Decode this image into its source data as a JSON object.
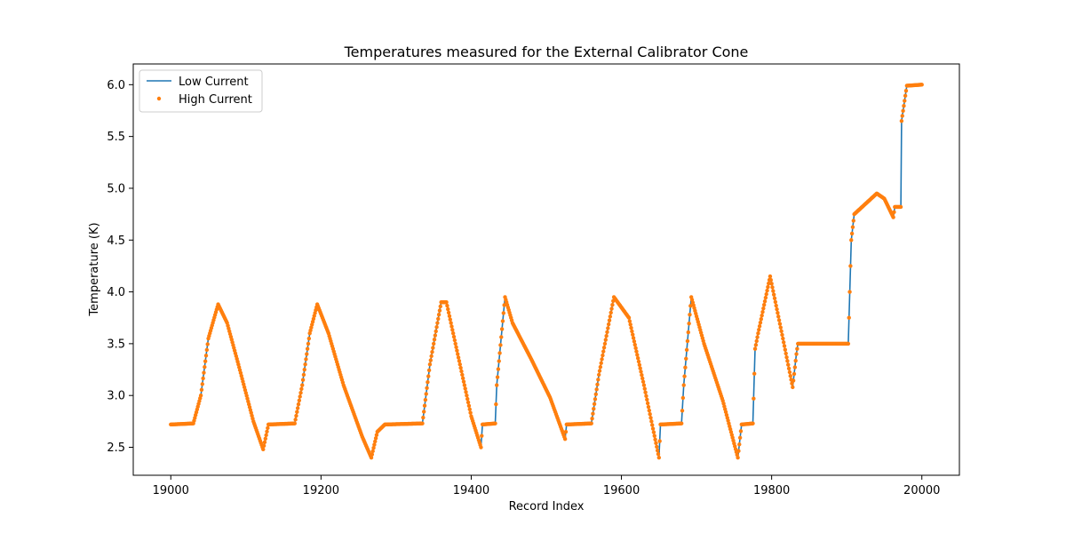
{
  "chart_data": {
    "type": "line",
    "title": "Temperatures measured for the External Calibrator Cone",
    "xlabel": "Record Index",
    "ylabel": "Temperature (K)",
    "xlim": [
      18950,
      20050
    ],
    "ylim": [
      2.23,
      6.2
    ],
    "xticks": [
      19000,
      19200,
      19400,
      19600,
      19800,
      20000
    ],
    "yticks": [
      2.5,
      3.0,
      3.5,
      4.0,
      4.5,
      5.0,
      5.5,
      6.0
    ],
    "xtick_labels": [
      "19000",
      "19200",
      "19400",
      "19600",
      "19800",
      "20000"
    ],
    "ytick_labels": [
      "2.5",
      "3.0",
      "3.5",
      "4.0",
      "4.5",
      "5.0",
      "5.5",
      "6.0"
    ],
    "legend_position": "upper-left",
    "grid": false,
    "series": [
      {
        "name": "Low Current",
        "style": "line",
        "color": "#1f77b4",
        "x": [
          19000,
          19030,
          19040,
          19050,
          19063,
          19075,
          19090,
          19110,
          19123,
          19130,
          19165,
          19175,
          19185,
          19195,
          19210,
          19230,
          19255,
          19267,
          19275,
          19285,
          19335,
          19345,
          19360,
          19367,
          19385,
          19400,
          19413,
          19415,
          19432,
          19434,
          19445,
          19455,
          19480,
          19505,
          19525,
          19527,
          19560,
          19570,
          19590,
          19610,
          19630,
          19650,
          19652,
          19680,
          19683,
          19693,
          19710,
          19735,
          19755,
          19760,
          19775,
          19778,
          19782,
          19798,
          19815,
          19828,
          19833,
          19835,
          19845,
          19902,
          19906,
          19910,
          19925,
          19940,
          19950,
          19962,
          19964,
          19972,
          19973,
          19980,
          20000
        ],
        "y": [
          2.72,
          2.73,
          3.0,
          3.55,
          3.88,
          3.7,
          3.3,
          2.75,
          2.48,
          2.72,
          2.73,
          3.1,
          3.6,
          3.88,
          3.6,
          3.1,
          2.6,
          2.4,
          2.65,
          2.72,
          2.73,
          3.3,
          3.9,
          3.9,
          3.3,
          2.8,
          2.5,
          2.72,
          2.73,
          3.1,
          3.95,
          3.7,
          3.35,
          2.98,
          2.58,
          2.72,
          2.73,
          3.2,
          3.95,
          3.75,
          3.1,
          2.4,
          2.72,
          2.73,
          3.1,
          3.95,
          3.5,
          2.95,
          2.4,
          2.72,
          2.73,
          3.45,
          3.6,
          4.15,
          3.55,
          3.08,
          3.4,
          3.5,
          3.5,
          3.5,
          4.5,
          4.75,
          4.85,
          4.95,
          4.9,
          4.72,
          4.82,
          4.82,
          5.65,
          5.99,
          6.0
        ]
      },
      {
        "name": "High Current",
        "style": "scatter",
        "color": "#ff7f0e",
        "x": [
          19000,
          19030,
          19040,
          19050,
          19063,
          19075,
          19090,
          19110,
          19123,
          19130,
          19165,
          19175,
          19185,
          19195,
          19210,
          19230,
          19255,
          19267,
          19275,
          19285,
          19335,
          19345,
          19360,
          19367,
          19385,
          19400,
          19413,
          19415,
          19432,
          19434,
          19445,
          19455,
          19480,
          19505,
          19525,
          19527,
          19560,
          19570,
          19590,
          19610,
          19630,
          19650,
          19652,
          19680,
          19683,
          19693,
          19710,
          19735,
          19755,
          19760,
          19775,
          19778,
          19782,
          19798,
          19815,
          19828,
          19833,
          19835,
          19845,
          19902,
          19906,
          19910,
          19925,
          19940,
          19950,
          19962,
          19964,
          19972,
          19973,
          19980,
          20000
        ],
        "y": [
          2.72,
          2.73,
          3.0,
          3.55,
          3.88,
          3.7,
          3.3,
          2.75,
          2.48,
          2.72,
          2.73,
          3.1,
          3.6,
          3.88,
          3.6,
          3.1,
          2.6,
          2.4,
          2.65,
          2.72,
          2.73,
          3.3,
          3.9,
          3.9,
          3.3,
          2.8,
          2.5,
          2.72,
          2.73,
          3.1,
          3.95,
          3.7,
          3.35,
          2.98,
          2.58,
          2.72,
          2.73,
          3.2,
          3.95,
          3.75,
          3.1,
          2.4,
          2.72,
          2.73,
          3.1,
          3.95,
          3.5,
          2.95,
          2.4,
          2.72,
          2.73,
          3.45,
          3.6,
          4.15,
          3.55,
          3.08,
          3.4,
          3.5,
          3.5,
          3.5,
          4.5,
          4.75,
          4.85,
          4.95,
          4.9,
          4.72,
          4.82,
          4.82,
          5.65,
          5.99,
          6.0
        ]
      }
    ]
  }
}
